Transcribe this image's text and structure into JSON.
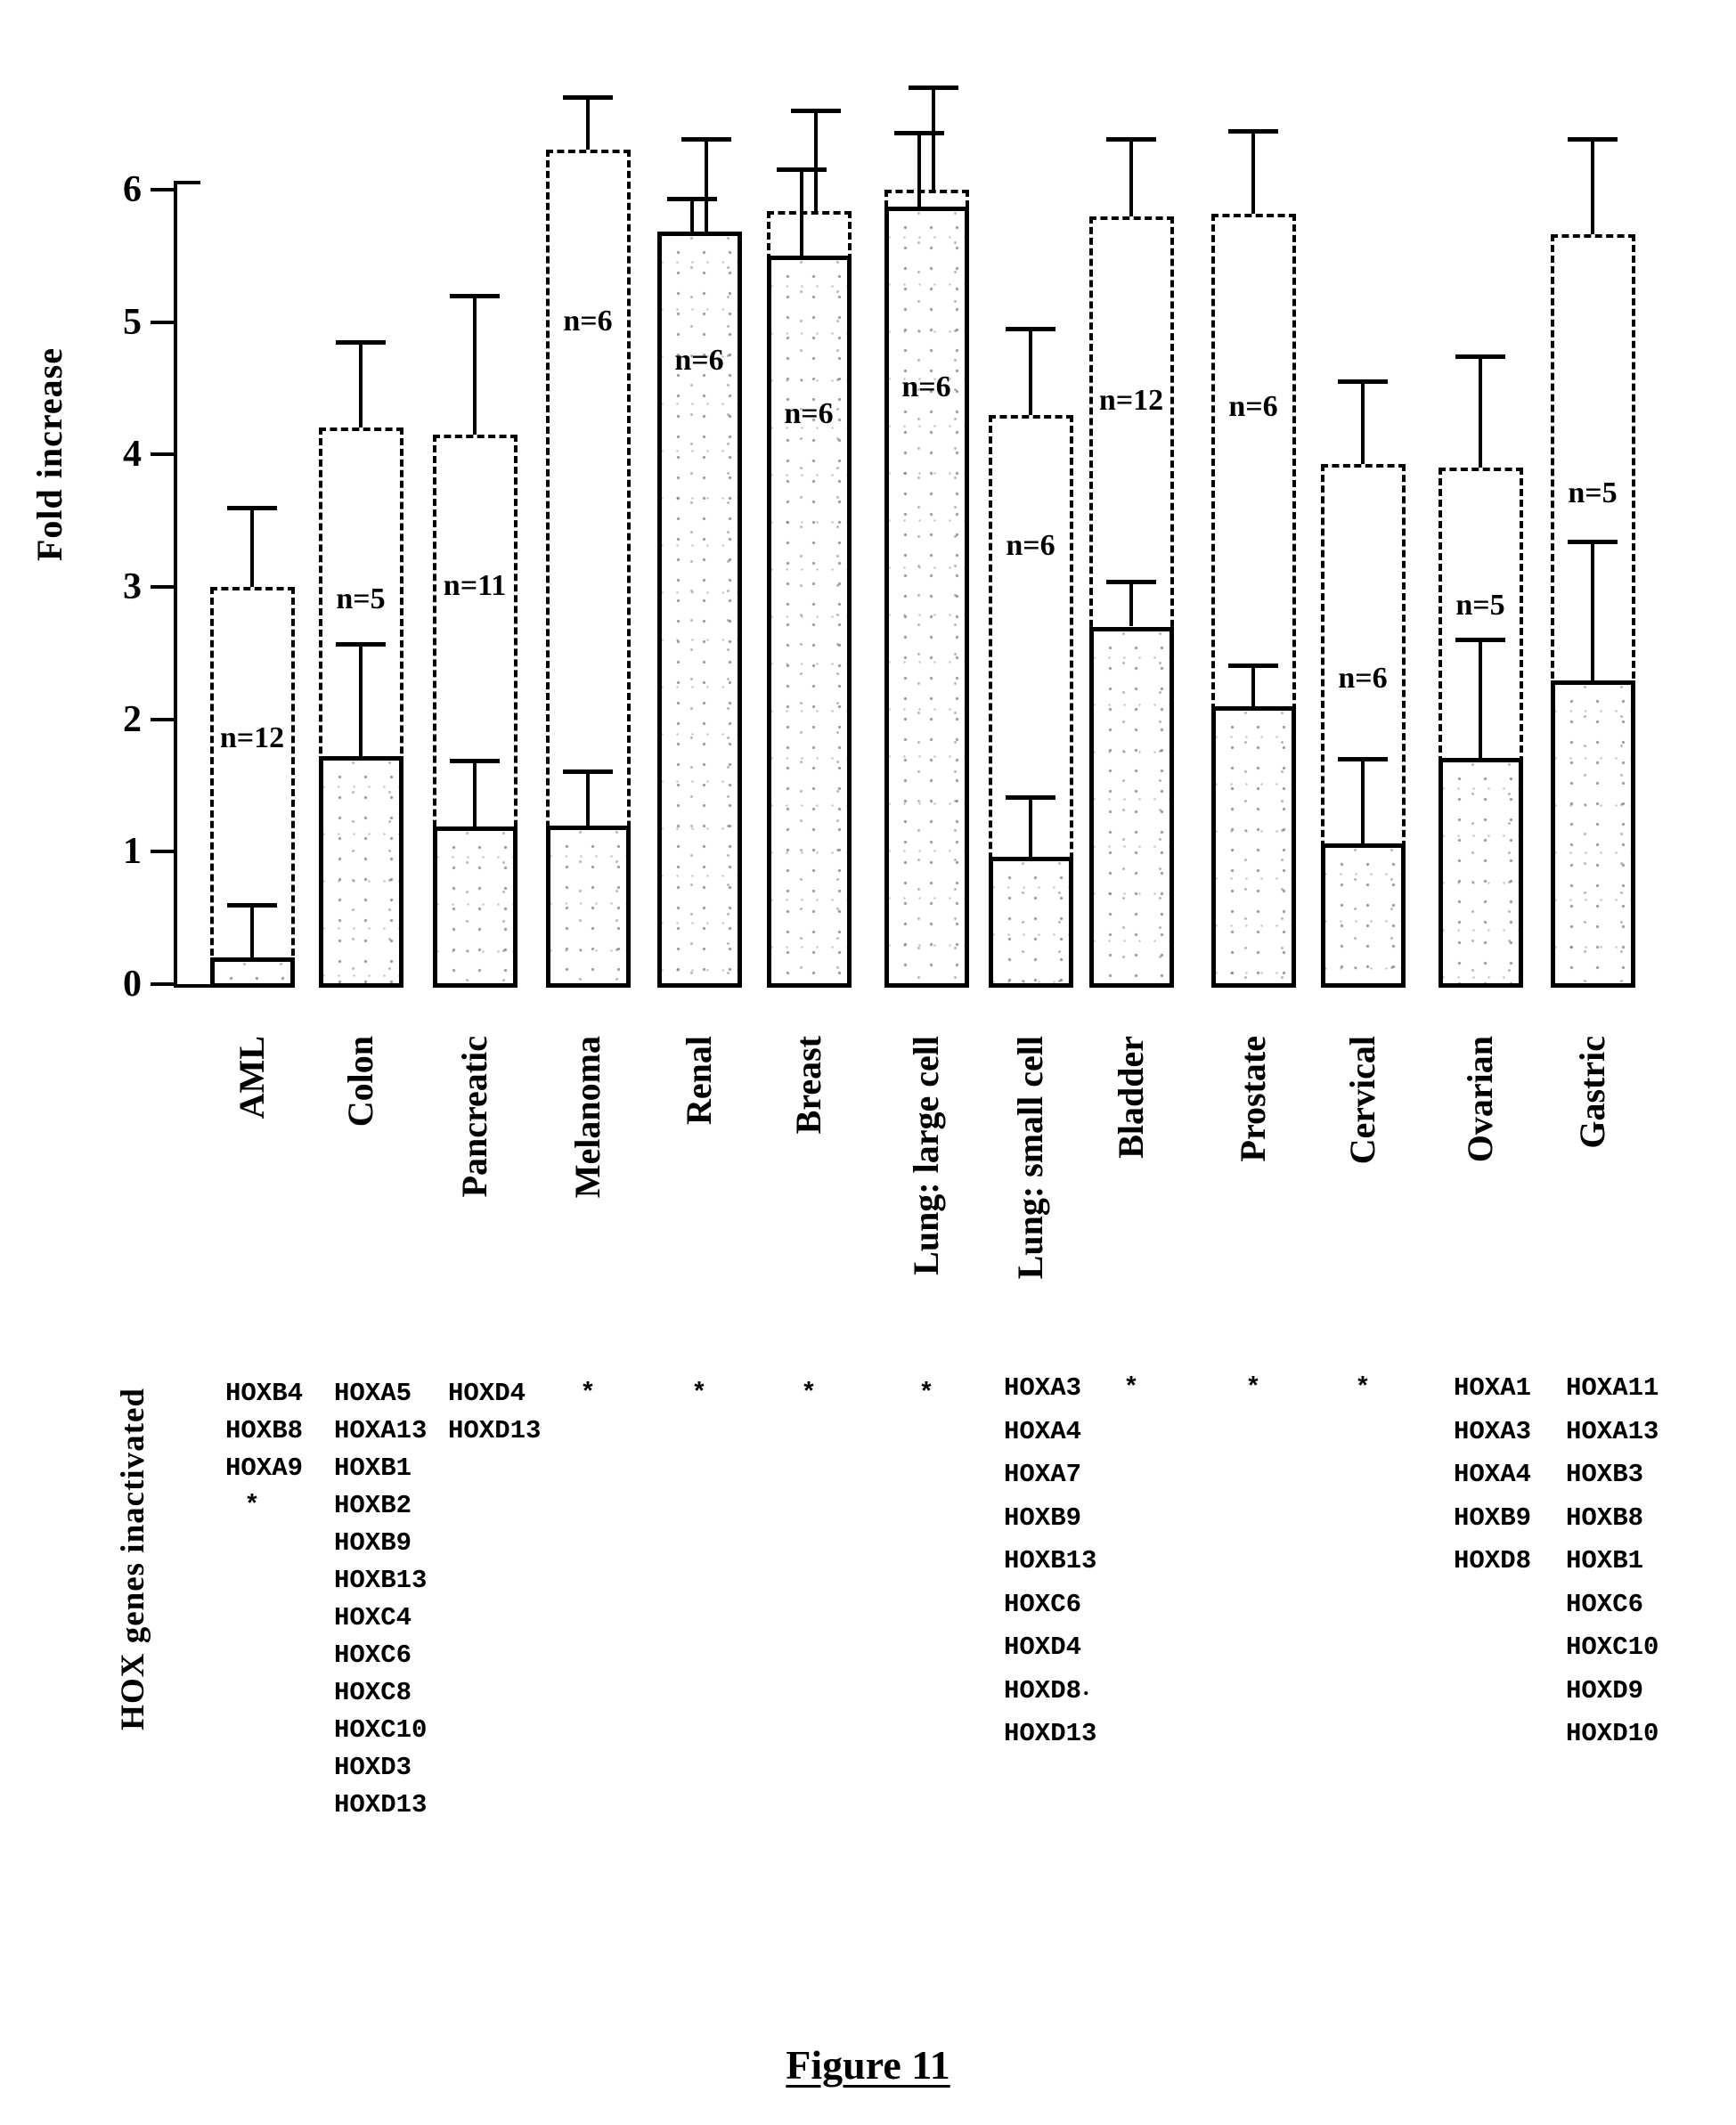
{
  "figure": {
    "caption": "Figure 11"
  },
  "colors": {
    "ink": "#000000",
    "paper": "#ffffff"
  },
  "chart_data": {
    "type": "bar",
    "title": "",
    "xlabel": "",
    "ylabel": "Fold increase",
    "yticks": [
      0,
      1,
      2,
      3,
      4,
      5,
      6
    ],
    "ylim": [
      0,
      6.9
    ],
    "grid": false,
    "legend": "none",
    "categories": [
      "AML",
      "Colon",
      "Pancreatic",
      "Melanoma",
      "Renal",
      "Breast",
      "Lung: large cell",
      "Lung: small cell",
      "Bladder",
      "Prostate",
      "Cervical",
      "Ovarian",
      "Gastric"
    ],
    "series": [
      {
        "name": "dashed-outline-bar",
        "style": "dashed",
        "values": [
          3.0,
          4.2,
          4.15,
          6.3,
          5.68,
          5.84,
          6.0,
          4.3,
          5.8,
          5.82,
          3.93,
          3.9,
          5.66
        ],
        "error_top": [
          3.6,
          4.85,
          5.2,
          6.7,
          6.38,
          6.6,
          6.77,
          4.95,
          6.38,
          6.44,
          4.55,
          4.74,
          6.38
        ]
      },
      {
        "name": "solid-speckled-bar",
        "style": "solid",
        "values": [
          0.2,
          1.72,
          1.19,
          1.2,
          5.68,
          5.5,
          5.87,
          0.96,
          2.7,
          2.1,
          1.06,
          1.71,
          2.29
        ],
        "error_top": [
          0.6,
          2.57,
          1.69,
          1.61,
          5.93,
          6.15,
          6.43,
          1.41,
          3.04,
          2.41,
          1.7,
          2.6,
          3.34
        ]
      }
    ],
    "n_labels": [
      {
        "text": "n=12",
        "y": 1.85
      },
      {
        "text": "n=5",
        "y": 2.9
      },
      {
        "text": "n=11",
        "y": 3.0
      },
      {
        "text": "n=6",
        "y": 5.0
      },
      {
        "text": "n=6",
        "y": 4.7
      },
      {
        "text": "n=6",
        "y": 4.3
      },
      {
        "text": "n=6",
        "y": 4.5
      },
      {
        "text": "n=6",
        "y": 3.3
      },
      {
        "text": "n=12",
        "y": 4.4
      },
      {
        "text": "n=6",
        "y": 4.35
      },
      {
        "text": "n=6",
        "y": 2.3
      },
      {
        "text": "n=5",
        "y": 2.85
      },
      {
        "text": "n=5",
        "y": 3.7
      }
    ]
  },
  "gene_section": {
    "title": "HOX genes inactivated",
    "lists": [
      [
        "HOXB4",
        "HOXB8",
        "HOXA9",
        "*"
      ],
      [
        "HOXA5",
        "HOXA13",
        "HOXB1",
        "HOXB2",
        "HOXB9",
        "HOXB13",
        "HOXC4",
        "HOXC6",
        "HOXC8",
        "HOXC10",
        "HOXD3",
        "HOXD13"
      ],
      [
        "HOXD4",
        "HOXD13"
      ],
      [
        "*"
      ],
      [
        "*"
      ],
      [
        "*"
      ],
      [
        "*"
      ],
      [
        "HOXA3",
        "HOXA4",
        "HOXA7",
        "HOXB9",
        "HOXB13",
        "HOXC6",
        "HOXD4",
        "HOXD8",
        "HOXD13"
      ],
      [
        "*"
      ],
      [
        "*"
      ],
      [
        "*"
      ],
      [
        "HOXA1",
        "HOXA3",
        "HOXA4",
        "HOXB9",
        "HOXD8"
      ],
      [
        "HOXA11",
        "HOXA13",
        "HOXB3",
        "HOXB8",
        "HOXB1",
        "HOXC6",
        "HOXC10",
        "HOXD9",
        "HOXD10"
      ]
    ],
    "stray_mark": "."
  }
}
